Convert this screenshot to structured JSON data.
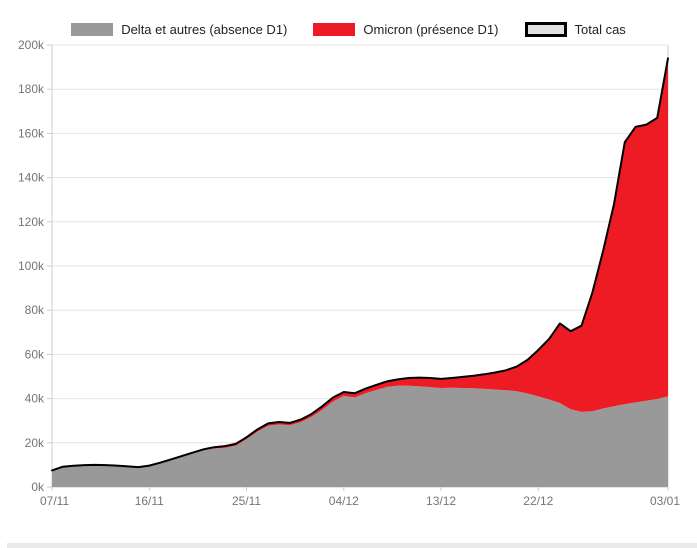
{
  "page": {
    "background": "#ffffff",
    "bottom_bar_color": "#e9e9e9"
  },
  "legend": {
    "items": [
      {
        "label": "Delta et autres (absence D1)",
        "swatch": "#999999",
        "style": "fill"
      },
      {
        "label": "Omicron (présence D1)",
        "swatch": "#ed1c24",
        "style": "fill"
      },
      {
        "label": "Total cas",
        "swatch": "#e0e0e0",
        "style": "outline",
        "border": "#000000"
      }
    ]
  },
  "chart_data": {
    "type": "area",
    "stacked": true,
    "title": "",
    "xlabel": "",
    "ylabel": "",
    "ylim": [
      0,
      200000
    ],
    "grid": "horizontal",
    "legend_position": "top",
    "axis_label_color": "#757575",
    "gridline_color": "#e4e4e4",
    "axis_line_color": "#cccccc",
    "y_ticks": [
      {
        "value": 0,
        "label": "0k"
      },
      {
        "value": 20000,
        "label": "20k"
      },
      {
        "value": 40000,
        "label": "40k"
      },
      {
        "value": 60000,
        "label": "60k"
      },
      {
        "value": 80000,
        "label": "80k"
      },
      {
        "value": 100000,
        "label": "100k"
      },
      {
        "value": 120000,
        "label": "120k"
      },
      {
        "value": 140000,
        "label": "140k"
      },
      {
        "value": 160000,
        "label": "160k"
      },
      {
        "value": 180000,
        "label": "180k"
      },
      {
        "value": 200000,
        "label": "200k"
      }
    ],
    "x_ticks": [
      {
        "index": 0,
        "label": "07/11"
      },
      {
        "index": 9,
        "label": "16/11"
      },
      {
        "index": 18,
        "label": "25/11"
      },
      {
        "index": 27,
        "label": "04/12"
      },
      {
        "index": 36,
        "label": "13/12"
      },
      {
        "index": 45,
        "label": "22/12"
      },
      {
        "index": 57,
        "label": "03/01"
      }
    ],
    "dates": [
      "07/11",
      "08/11",
      "09/11",
      "10/11",
      "11/11",
      "12/11",
      "13/11",
      "14/11",
      "15/11",
      "16/11",
      "17/11",
      "18/11",
      "19/11",
      "20/11",
      "21/11",
      "22/11",
      "23/11",
      "24/11",
      "25/11",
      "26/11",
      "27/11",
      "28/11",
      "29/11",
      "30/11",
      "01/12",
      "02/12",
      "03/12",
      "04/12",
      "05/12",
      "06/12",
      "07/12",
      "08/12",
      "09/12",
      "10/12",
      "11/12",
      "12/12",
      "13/12",
      "14/12",
      "15/12",
      "16/12",
      "17/12",
      "18/12",
      "19/12",
      "20/12",
      "21/12",
      "22/12",
      "23/12",
      "24/12",
      "25/12",
      "26/12",
      "27/12",
      "28/12",
      "29/12",
      "30/12",
      "31/12",
      "01/01",
      "02/01",
      "03/01"
    ],
    "series": [
      {
        "name": "Delta et autres (absence D1)",
        "role": "area",
        "color": "#999999",
        "values": [
          7450,
          9150,
          9550,
          9850,
          9950,
          9850,
          9650,
          9250,
          8950,
          9600,
          10900,
          12350,
          13800,
          15200,
          16600,
          17400,
          17800,
          18700,
          21700,
          25000,
          27700,
          28300,
          27900,
          29300,
          31700,
          34900,
          38700,
          41200,
          40500,
          42400,
          43900,
          45300,
          45800,
          45800,
          45500,
          45200,
          44800,
          44900,
          44800,
          44700,
          44400,
          44100,
          43800,
          43300,
          42300,
          41000,
          39600,
          38000,
          35200,
          34000,
          34300,
          35500,
          36500,
          37500,
          38300,
          39000,
          39800,
          41000
        ]
      },
      {
        "name": "Omicron (présence D1)",
        "role": "area",
        "color": "#ed1c24",
        "values": [
          50,
          50,
          50,
          50,
          50,
          50,
          50,
          50,
          50,
          100,
          100,
          150,
          200,
          300,
          400,
          600,
          700,
          800,
          800,
          1000,
          1100,
          1100,
          1100,
          1200,
          1300,
          1600,
          1800,
          1800,
          1900,
          2100,
          2300,
          2500,
          2900,
          3500,
          4000,
          4100,
          4100,
          4400,
          5000,
          5600,
          6600,
          7700,
          9000,
          11200,
          15200,
          21000,
          27400,
          36000,
          35300,
          39000,
          53700,
          71500,
          91500,
          118500,
          124700,
          125000,
          127200,
          153000
        ]
      },
      {
        "name": "Total cas",
        "role": "line",
        "color": "#000000",
        "line_width": 2,
        "values": [
          7500,
          9200,
          9600,
          9900,
          10000,
          9900,
          9700,
          9300,
          9000,
          9700,
          11000,
          12500,
          14000,
          15500,
          17000,
          18000,
          18500,
          19500,
          22500,
          26000,
          28800,
          29400,
          29000,
          30500,
          33000,
          36500,
          40500,
          43000,
          42400,
          44500,
          46200,
          47800,
          48700,
          49300,
          49500,
          49300,
          48900,
          49300,
          49800,
          50300,
          51000,
          51800,
          52800,
          54500,
          57500,
          62000,
          67000,
          74000,
          70500,
          73000,
          88000,
          107000,
          128000,
          156000,
          163000,
          164000,
          167000,
          194000
        ]
      }
    ]
  }
}
